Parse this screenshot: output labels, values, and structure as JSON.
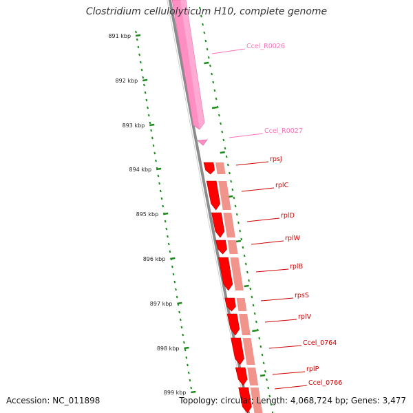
{
  "title": "Clostridium cellulolyticum H10, complete genome",
  "footer": {
    "accession": "Accession: NC_011898",
    "topology": "Topology: circular; Length: 4,068,724 bp; Genes: 3,477"
  },
  "colors": {
    "backbone": "#8c8c8c",
    "scale": "#1a8a1a",
    "rna_gene": "#ff8fc3",
    "rna_label": "#ff70b8",
    "cds_gene": "#ff0000",
    "cds_label": "#cc0000",
    "cds_translucent": "#ef8a80"
  },
  "scale_ticks": [
    "891 kbp",
    "892 kbp",
    "893 kbp",
    "894 kbp",
    "895 kbp",
    "896 kbp",
    "897 kbp",
    "898 kbp",
    "899 kbp"
  ],
  "genes": [
    {
      "label": "Ccel_R0026",
      "type": "rna"
    },
    {
      "label": "Ccel_R0027",
      "type": "rna"
    },
    {
      "label": "rpsJ",
      "type": "cds"
    },
    {
      "label": "rplC",
      "type": "cds"
    },
    {
      "label": "rplD",
      "type": "cds"
    },
    {
      "label": "rplW",
      "type": "cds"
    },
    {
      "label": "rplB",
      "type": "cds"
    },
    {
      "label": "rpsS",
      "type": "cds"
    },
    {
      "label": "rplV",
      "type": "cds"
    },
    {
      "label": "Ccel_0764",
      "type": "cds"
    },
    {
      "label": "rplP",
      "type": "cds"
    },
    {
      "label": "Ccel_0766",
      "type": "cds"
    }
  ]
}
